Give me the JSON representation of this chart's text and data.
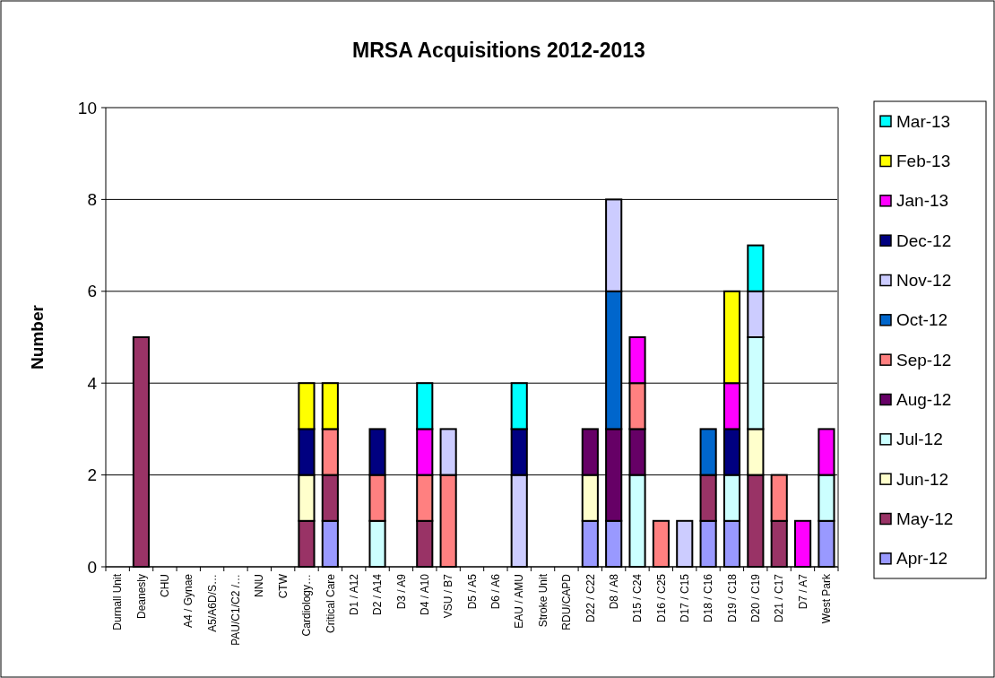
{
  "chart_data": {
    "type": "bar",
    "title": "MRSA Acquisitions 2012-2013",
    "ylabel": "Number",
    "stacked": true,
    "grid": "y",
    "legend": "right",
    "ylim": [
      0,
      10
    ],
    "yticks": [
      0,
      2,
      4,
      6,
      8,
      10
    ],
    "categories": [
      "Durnall Unit",
      "Deanesly",
      "CHU",
      "A4 / Gynae",
      "A5/A6D/S…",
      "PAU/C1/C2 /…",
      "NNU",
      "CTW",
      "Cardiology…",
      "Critical Care",
      "D1 / A12",
      "D2 / A14",
      "D3 / A9",
      "D4 / A10",
      "VSU / B7",
      "D5 / A5",
      "D6 / A6",
      "EAU / AMU",
      "Stroke Unit",
      "RDU/CAPD",
      "D22 / C22",
      "D8 / A8",
      "D15 / C24",
      "D16 / C25",
      "D17 / C15",
      "D18 / C16",
      "D19 / C18",
      "D20 / C19",
      "D21 / C17",
      "D7 / A7",
      "West Park"
    ],
    "series": [
      {
        "name": "Apr-12",
        "color": "#9999ff",
        "values": [
          0,
          0,
          0,
          0,
          0,
          0,
          0,
          0,
          0,
          1,
          0,
          0,
          0,
          0,
          0,
          0,
          0,
          0,
          0,
          0,
          1,
          1,
          0,
          0,
          0,
          1,
          1,
          0,
          0,
          0,
          1
        ]
      },
      {
        "name": "May-12",
        "color": "#993366",
        "values": [
          0,
          5,
          0,
          0,
          0,
          0,
          0,
          0,
          1,
          1,
          0,
          0,
          0,
          1,
          0,
          0,
          0,
          0,
          0,
          0,
          0,
          0,
          0,
          0,
          0,
          1,
          0,
          2,
          1,
          0,
          0
        ]
      },
      {
        "name": "Jun-12",
        "color": "#ffffcc",
        "values": [
          0,
          0,
          0,
          0,
          0,
          0,
          0,
          0,
          1,
          0,
          0,
          0,
          0,
          0,
          0,
          0,
          0,
          0,
          0,
          0,
          1,
          0,
          0,
          0,
          0,
          0,
          0,
          1,
          0,
          0,
          0
        ]
      },
      {
        "name": "Jul-12",
        "color": "#ccffff",
        "values": [
          0,
          0,
          0,
          0,
          0,
          0,
          0,
          0,
          0,
          0,
          0,
          1,
          0,
          0,
          0,
          0,
          0,
          0,
          0,
          0,
          0,
          0,
          2,
          0,
          0,
          0,
          1,
          2,
          0,
          0,
          1
        ]
      },
      {
        "name": "Aug-12",
        "color": "#660066",
        "values": [
          0,
          0,
          0,
          0,
          0,
          0,
          0,
          0,
          0,
          0,
          0,
          0,
          0,
          0,
          0,
          0,
          0,
          0,
          0,
          0,
          1,
          2,
          1,
          0,
          0,
          0,
          0,
          0,
          0,
          0,
          0
        ]
      },
      {
        "name": "Sep-12",
        "color": "#ff8080",
        "values": [
          0,
          0,
          0,
          0,
          0,
          0,
          0,
          0,
          0,
          1,
          0,
          1,
          0,
          1,
          2,
          0,
          0,
          0,
          0,
          0,
          0,
          0,
          1,
          1,
          0,
          0,
          0,
          0,
          1,
          0,
          0
        ]
      },
      {
        "name": "Oct-12",
        "color": "#0066cc",
        "values": [
          0,
          0,
          0,
          0,
          0,
          0,
          0,
          0,
          0,
          0,
          0,
          0,
          0,
          0,
          0,
          0,
          0,
          0,
          0,
          0,
          0,
          3,
          0,
          0,
          0,
          1,
          0,
          0,
          0,
          0,
          0
        ]
      },
      {
        "name": "Nov-12",
        "color": "#ccccff",
        "values": [
          0,
          0,
          0,
          0,
          0,
          0,
          0,
          0,
          0,
          0,
          0,
          0,
          0,
          0,
          1,
          0,
          0,
          2,
          0,
          0,
          0,
          2,
          0,
          0,
          1,
          0,
          0,
          1,
          0,
          0,
          0
        ]
      },
      {
        "name": "Dec-12",
        "color": "#000080",
        "values": [
          0,
          0,
          0,
          0,
          0,
          0,
          0,
          0,
          1,
          0,
          0,
          1,
          0,
          0,
          0,
          0,
          0,
          1,
          0,
          0,
          0,
          0,
          0,
          0,
          0,
          0,
          1,
          0,
          0,
          0,
          0
        ]
      },
      {
        "name": "Jan-13",
        "color": "#ff00ff",
        "values": [
          0,
          0,
          0,
          0,
          0,
          0,
          0,
          0,
          0,
          0,
          0,
          0,
          0,
          1,
          0,
          0,
          0,
          0,
          0,
          0,
          0,
          0,
          1,
          0,
          0,
          0,
          1,
          0,
          0,
          1,
          1
        ]
      },
      {
        "name": "Feb-13",
        "color": "#ffff00",
        "values": [
          0,
          0,
          0,
          0,
          0,
          0,
          0,
          0,
          1,
          1,
          0,
          0,
          0,
          0,
          0,
          0,
          0,
          0,
          0,
          0,
          0,
          0,
          0,
          0,
          0,
          0,
          2,
          0,
          0,
          0,
          0
        ]
      },
      {
        "name": "Mar-13",
        "color": "#00ffff",
        "values": [
          0,
          0,
          0,
          0,
          0,
          0,
          0,
          0,
          0,
          0,
          0,
          0,
          0,
          1,
          0,
          0,
          0,
          1,
          0,
          0,
          0,
          0,
          0,
          0,
          0,
          0,
          0,
          1,
          0,
          0,
          0
        ]
      }
    ]
  }
}
